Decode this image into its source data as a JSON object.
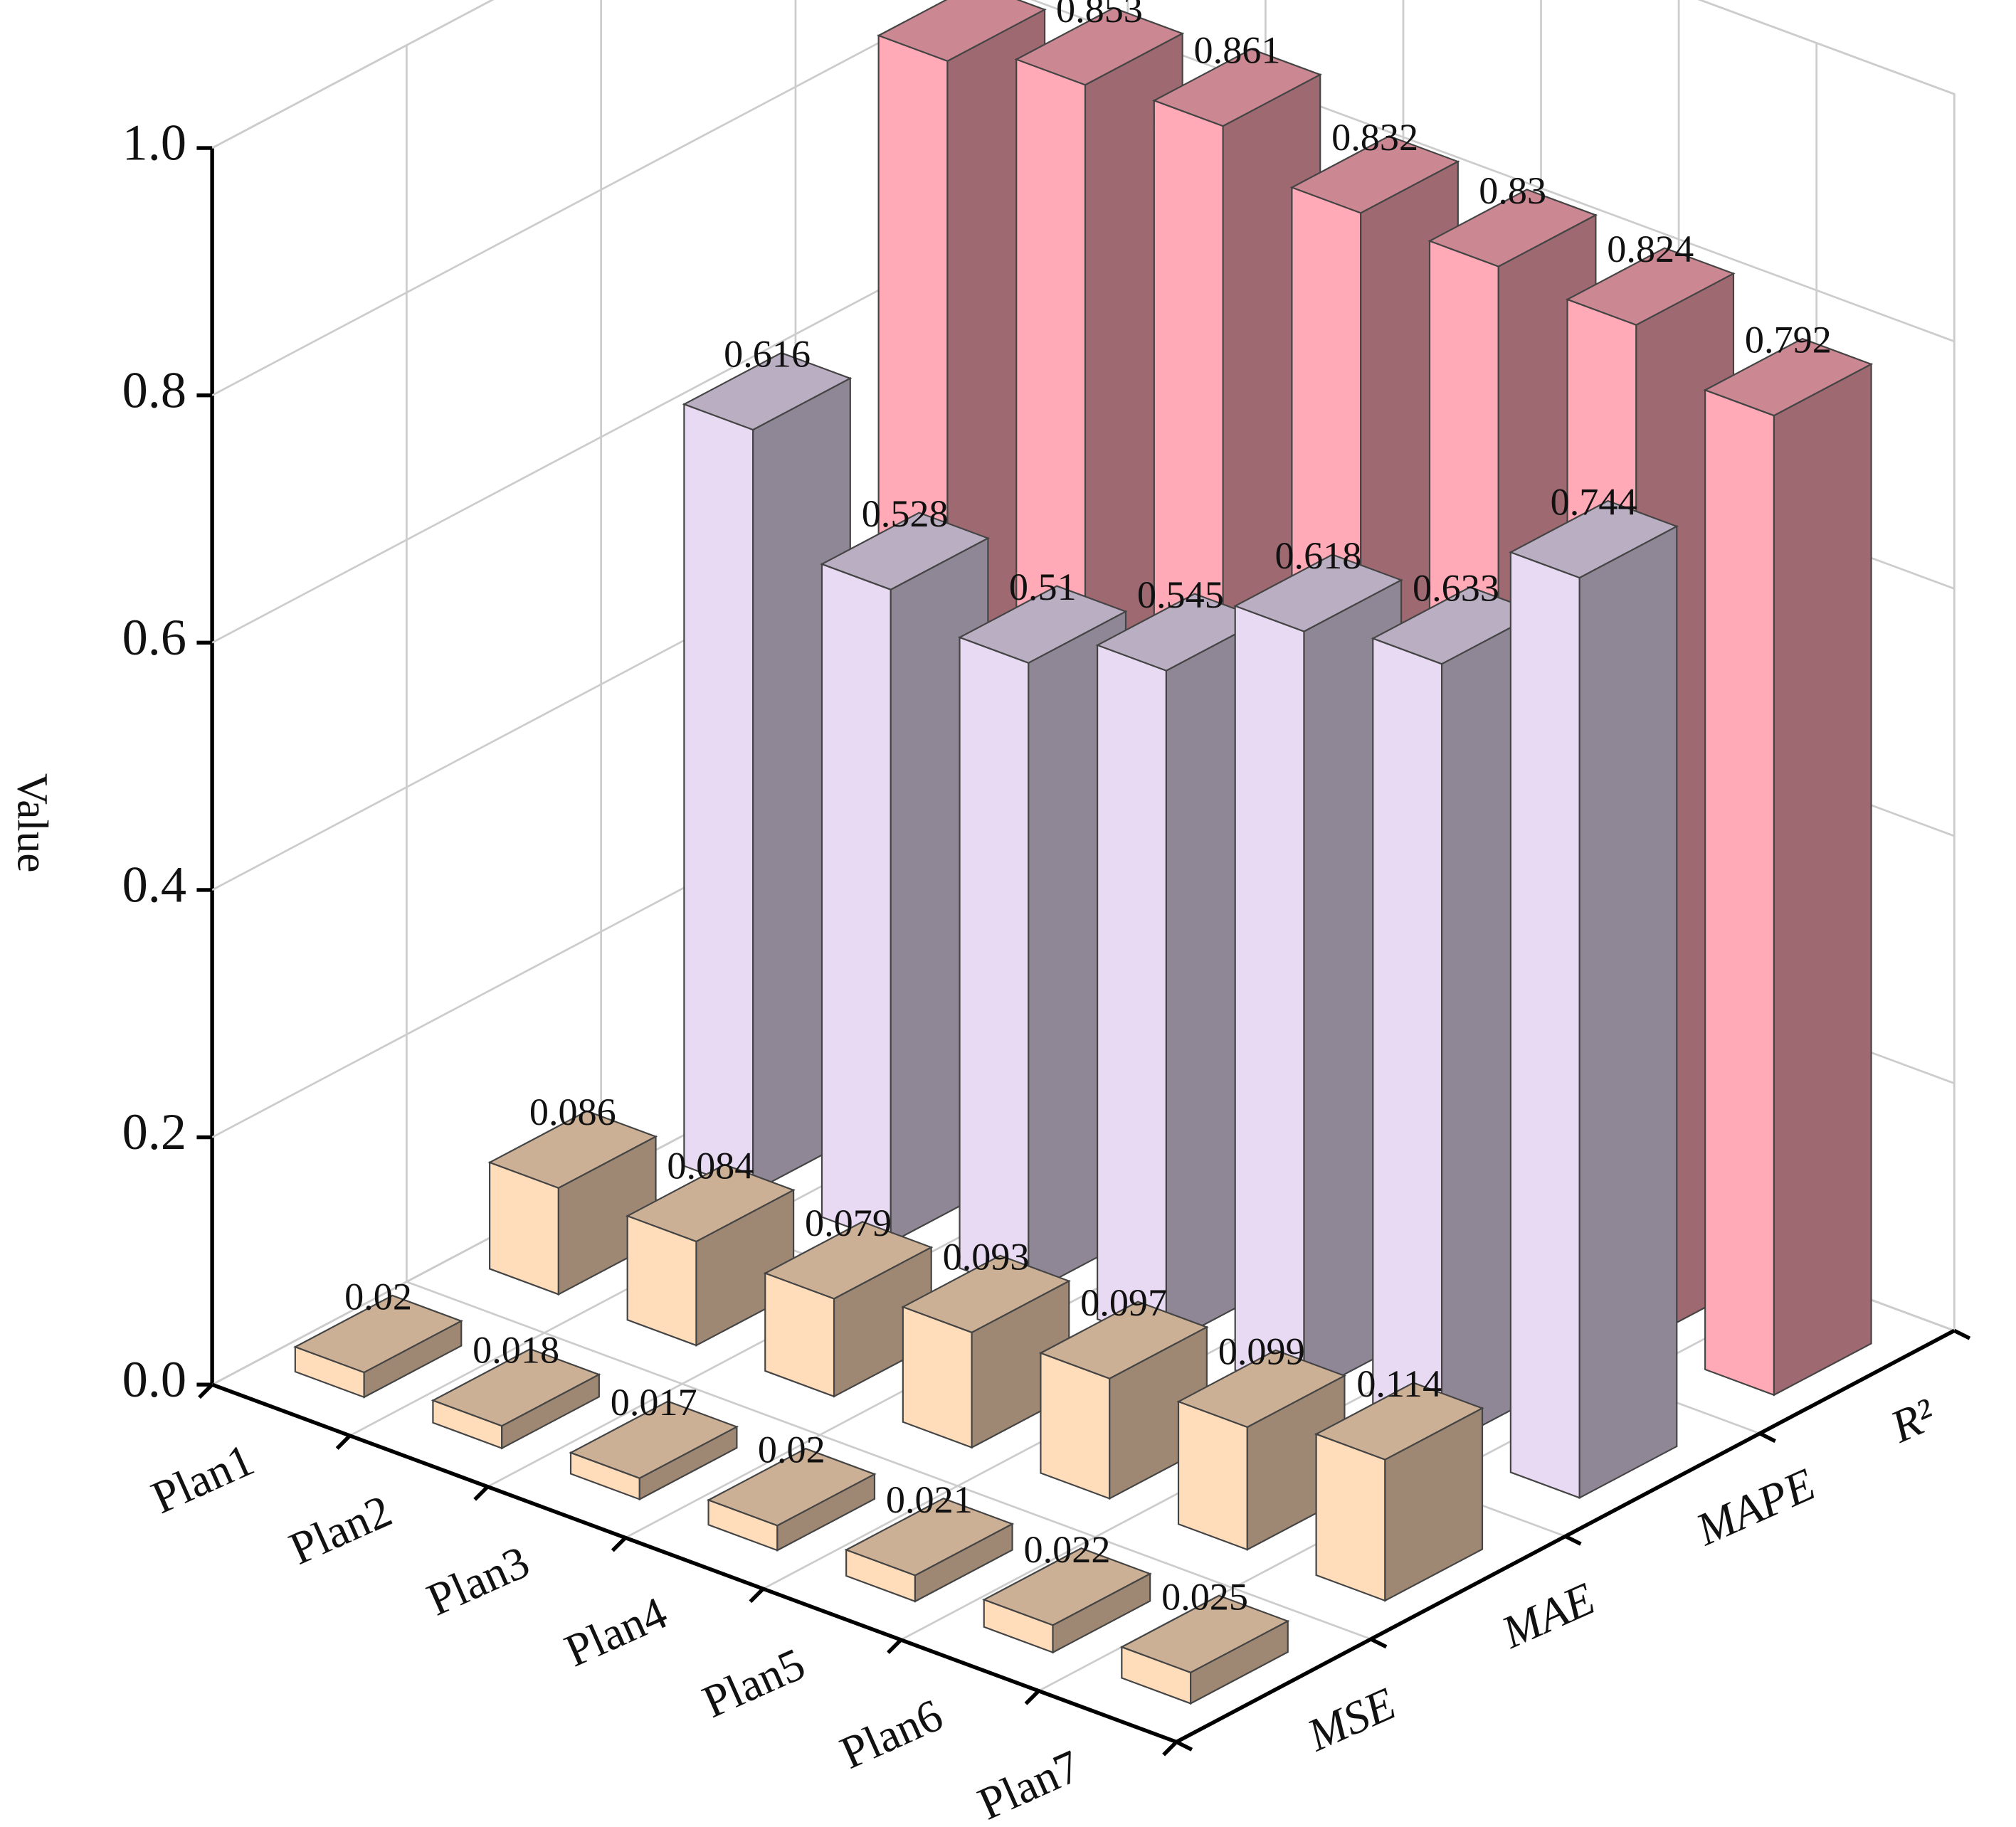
{
  "chart_data": {
    "type": "bar3d",
    "y_label": "Value",
    "categories": [
      "Plan1",
      "Plan2",
      "Plan3",
      "Plan4",
      "Plan5",
      "Plan6",
      "Plan7"
    ],
    "series": [
      {
        "name": "MSE",
        "color": "#ffdcba",
        "values": [
          0.02,
          0.018,
          0.017,
          0.02,
          0.021,
          0.022,
          0.025
        ]
      },
      {
        "name": "MAE",
        "color": "#ffdcba",
        "values": [
          0.086,
          0.084,
          0.079,
          0.093,
          0.097,
          0.099,
          0.114
        ]
      },
      {
        "name": "MAPE",
        "color": "#e8daf2",
        "values": [
          0.616,
          0.528,
          0.51,
          0.545,
          0.618,
          0.633,
          0.744
        ]
      },
      {
        "name": "R²",
        "color": "#ffaab6",
        "values": [
          0.831,
          0.853,
          0.861,
          0.832,
          0.83,
          0.824,
          0.792
        ]
      }
    ],
    "ylim": [
      0,
      1
    ],
    "yticks": [
      {
        "value": 0,
        "label": "0.0"
      },
      0.2,
      0.4,
      0.6,
      0.8,
      {
        "value": 1,
        "label": "1.0"
      }
    ],
    "grid": true
  }
}
